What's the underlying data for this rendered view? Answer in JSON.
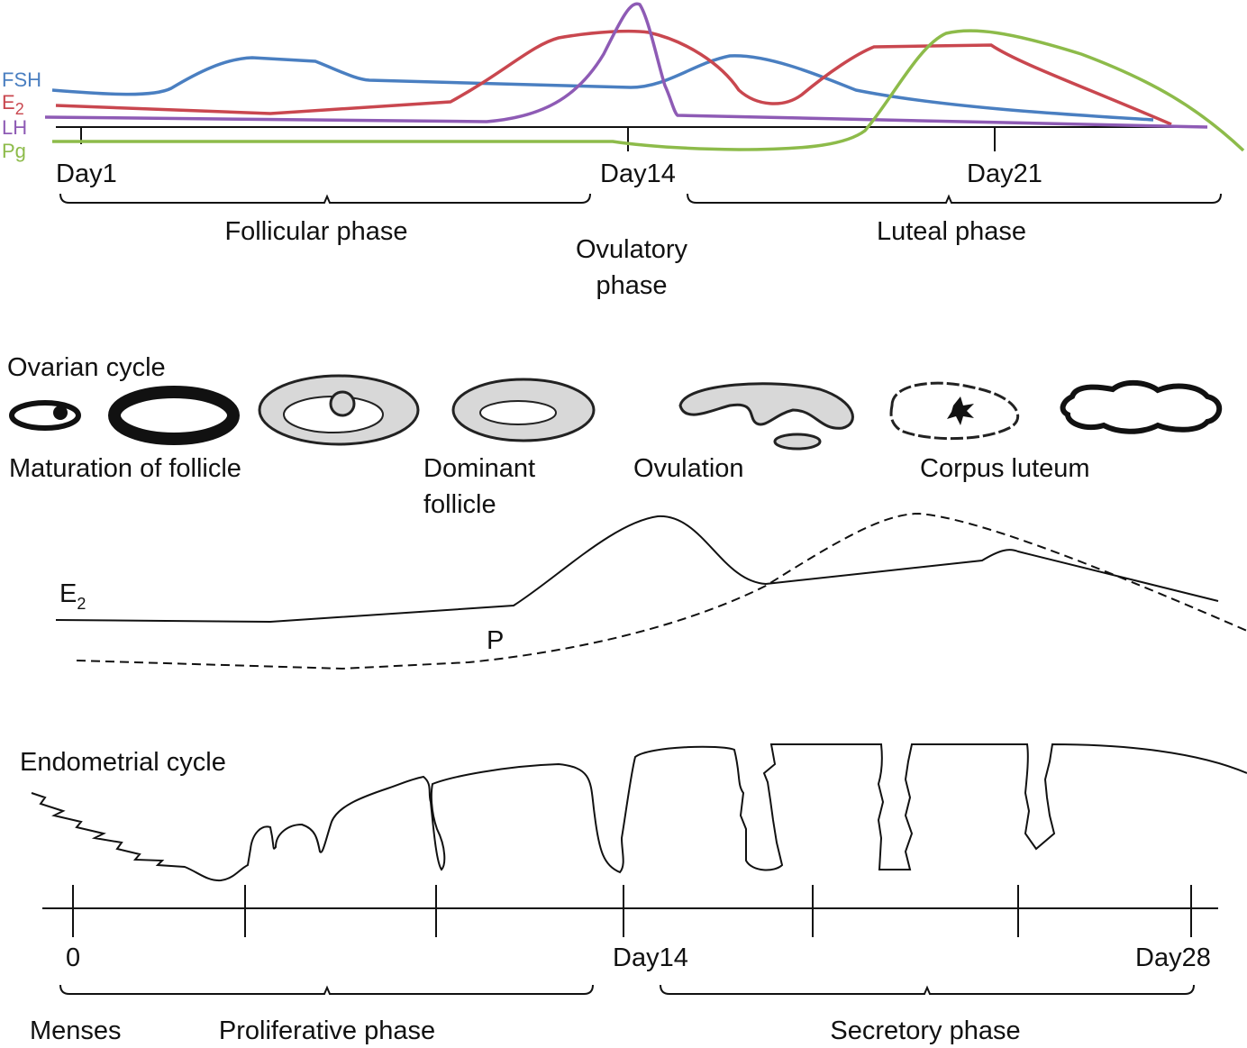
{
  "hormone_chart": {
    "legend": [
      {
        "label": "FSH",
        "color": "#4a7fc1"
      },
      {
        "label": {
          "base": "E",
          "sub": "2"
        },
        "color": "#c9474f"
      },
      {
        "label": "LH",
        "color": "#8e5bb5"
      },
      {
        "label": "Pg",
        "color": "#8dbb4a"
      }
    ],
    "day_labels": [
      "Day1",
      "Day14",
      "Day21"
    ],
    "phases": {
      "follicular": "Follicular phase",
      "ovulatory": [
        "Ovulatory",
        "phase"
      ],
      "luteal": "Luteal phase"
    }
  },
  "ovarian_cycle": {
    "title": "Ovarian cycle",
    "stages": {
      "maturation": "Maturation of follicle",
      "dominant": [
        "Dominant",
        "follicle"
      ],
      "ovulation": "Ovulation",
      "corpus_luteum": "Corpus luteum"
    },
    "hormones": {
      "e2": {
        "base": "E",
        "sub": "2"
      },
      "p": "P"
    }
  },
  "endometrial_cycle": {
    "title": "Endometrial cycle",
    "day_labels": [
      "0",
      "Day14",
      "Day28"
    ],
    "phases": {
      "menses": "Menses",
      "proliferative": "Proliferative phase",
      "secretory": "Secretory phase"
    }
  }
}
